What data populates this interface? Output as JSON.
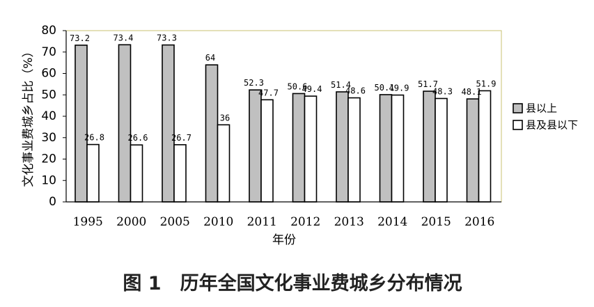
{
  "caption": "图 1　历年全国文化事业费城乡分布情况",
  "colors": {
    "series_a": "#c0c0c0",
    "series_b": "#ffffff",
    "plot_border": "#c8c070"
  },
  "chart_data": {
    "type": "bar",
    "xlabel": "年份",
    "ylabel": "文化事业费城乡占比（%）",
    "ylim": [
      0,
      80
    ],
    "yticks": [
      "0",
      "10",
      "20",
      "30",
      "40",
      "50",
      "60",
      "70",
      "80"
    ],
    "grid": false,
    "legend_position": "right",
    "categories": [
      "1995",
      "2000",
      "2005",
      "2010",
      "2011",
      "2012",
      "2013",
      "2014",
      "2015",
      "2016"
    ],
    "series": [
      {
        "name": "县以上",
        "values": [
          73.2,
          73.4,
          73.3,
          64,
          52.3,
          50.6,
          51.4,
          50.1,
          51.7,
          48.1
        ],
        "labels": [
          "73.2",
          "73.4",
          "73.3",
          "64",
          "52.3",
          "50.6",
          "51.4",
          "50.1",
          "51.7",
          "48.1"
        ]
      },
      {
        "name": "县及县以下",
        "values": [
          26.8,
          26.6,
          26.7,
          36,
          47.7,
          49.4,
          48.6,
          49.9,
          48.3,
          51.9
        ],
        "labels": [
          "26.8",
          "26.6",
          "26.7",
          "36",
          "47.7",
          "49.4",
          "48.6",
          "49.9",
          "48.3",
          "51.9"
        ]
      }
    ]
  }
}
